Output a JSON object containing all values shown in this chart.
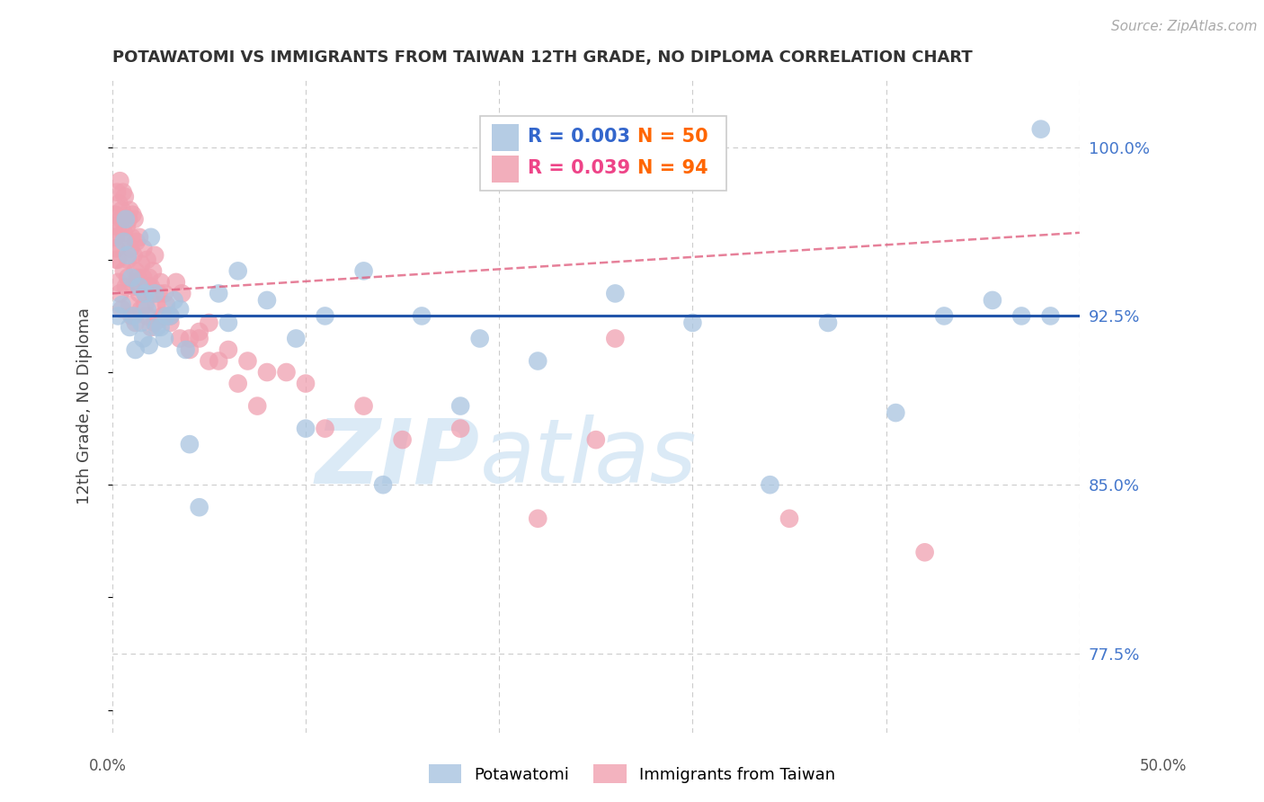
{
  "title": "POTAWATOMI VS IMMIGRANTS FROM TAIWAN 12TH GRADE, NO DIPLOMA CORRELATION CHART",
  "source": "Source: ZipAtlas.com",
  "ylabel": "12th Grade, No Diploma",
  "xlim": [
    0.0,
    50.0
  ],
  "ylim": [
    74.0,
    103.0
  ],
  "yticks": [
    77.5,
    85.0,
    92.5,
    100.0
  ],
  "ytick_labels": [
    "77.5%",
    "85.0%",
    "92.5%",
    "100.0%"
  ],
  "xtick_labels": [
    "0.0%",
    "50.0%"
  ],
  "blue_color": "#A8C4E0",
  "pink_color": "#F0A0B0",
  "blue_line_color": "#2255AA",
  "pink_line_color": "#E06080",
  "legend_blue_R": "R = 0.003",
  "legend_blue_N": "N = 50",
  "legend_pink_R": "R = 0.039",
  "legend_pink_N": "N = 94",
  "watermark_zip": "ZIP",
  "watermark_atlas": "atlas",
  "blue_trend_y0": 92.5,
  "blue_trend_y1": 92.5,
  "pink_trend_y0": 93.5,
  "pink_trend_y1": 96.2,
  "blue_scatter_x": [
    0.3,
    0.5,
    0.6,
    0.7,
    0.8,
    0.9,
    1.0,
    1.1,
    1.2,
    1.4,
    1.5,
    1.6,
    1.7,
    1.8,
    1.9,
    2.0,
    2.2,
    2.5,
    2.7,
    3.0,
    3.2,
    3.5,
    4.0,
    4.5,
    5.5,
    6.5,
    8.0,
    9.5,
    11.0,
    13.0,
    16.0,
    19.0,
    22.0,
    26.0,
    30.0,
    34.0,
    37.0,
    40.5,
    43.0,
    45.5,
    47.0,
    48.5,
    2.3,
    2.8,
    3.8,
    6.0,
    10.0,
    14.0,
    18.0,
    48.0
  ],
  "blue_scatter_y": [
    92.5,
    93.0,
    95.8,
    96.8,
    95.2,
    92.0,
    94.2,
    92.5,
    91.0,
    93.8,
    92.2,
    91.5,
    93.5,
    92.8,
    91.2,
    96.0,
    93.5,
    92.0,
    91.5,
    92.5,
    93.2,
    92.8,
    86.8,
    84.0,
    93.5,
    94.5,
    93.2,
    91.5,
    92.5,
    94.5,
    92.5,
    91.5,
    90.5,
    93.5,
    92.2,
    85.0,
    92.2,
    88.2,
    92.5,
    93.2,
    92.5,
    92.5,
    92.0,
    92.5,
    91.0,
    92.2,
    87.5,
    85.0,
    88.5,
    100.8
  ],
  "pink_scatter_x": [
    0.1,
    0.15,
    0.2,
    0.25,
    0.3,
    0.35,
    0.4,
    0.45,
    0.5,
    0.55,
    0.6,
    0.65,
    0.7,
    0.75,
    0.8,
    0.85,
    0.9,
    0.95,
    1.0,
    1.05,
    1.1,
    1.15,
    1.2,
    1.25,
    1.3,
    1.4,
    1.5,
    1.6,
    1.7,
    1.8,
    1.9,
    2.0,
    2.1,
    2.2,
    2.3,
    2.5,
    2.7,
    3.0,
    3.3,
    3.6,
    4.0,
    4.5,
    5.0,
    5.5,
    6.5,
    7.5,
    9.0,
    11.0,
    15.0,
    22.0,
    26.0,
    0.2,
    0.3,
    0.4,
    0.5,
    0.6,
    0.7,
    0.8,
    0.9,
    1.0,
    1.1,
    1.2,
    1.3,
    1.4,
    1.5,
    1.6,
    1.7,
    1.8,
    1.9,
    2.0,
    2.1,
    2.2,
    2.4,
    2.6,
    2.8,
    3.0,
    3.5,
    4.0,
    4.5,
    5.0,
    6.0,
    7.0,
    8.0,
    10.0,
    13.0,
    18.0,
    25.0,
    35.0,
    42.0,
    0.08,
    0.12,
    0.18,
    0.22,
    0.28
  ],
  "pink_scatter_y": [
    96.0,
    97.0,
    95.5,
    98.0,
    96.5,
    97.5,
    98.5,
    96.8,
    97.2,
    98.0,
    96.2,
    97.8,
    95.8,
    96.5,
    95.0,
    96.8,
    97.2,
    95.5,
    96.0,
    97.0,
    95.2,
    96.8,
    94.5,
    95.8,
    94.2,
    96.0,
    94.8,
    95.5,
    93.5,
    95.0,
    94.2,
    93.8,
    94.5,
    95.2,
    93.0,
    94.0,
    93.5,
    92.5,
    94.0,
    93.5,
    91.5,
    91.8,
    92.2,
    90.5,
    89.5,
    88.5,
    90.0,
    87.5,
    87.0,
    83.5,
    91.5,
    95.0,
    94.0,
    93.5,
    92.8,
    94.5,
    93.8,
    94.2,
    93.0,
    92.5,
    93.8,
    92.2,
    94.0,
    93.5,
    92.8,
    94.2,
    93.0,
    92.5,
    93.8,
    92.0,
    93.5,
    92.2,
    93.5,
    92.5,
    93.0,
    92.2,
    91.5,
    91.0,
    91.5,
    90.5,
    91.0,
    90.5,
    90.0,
    89.5,
    88.5,
    87.5,
    87.0,
    83.5,
    82.0,
    97.0,
    96.5,
    96.0,
    95.5,
    95.0
  ]
}
